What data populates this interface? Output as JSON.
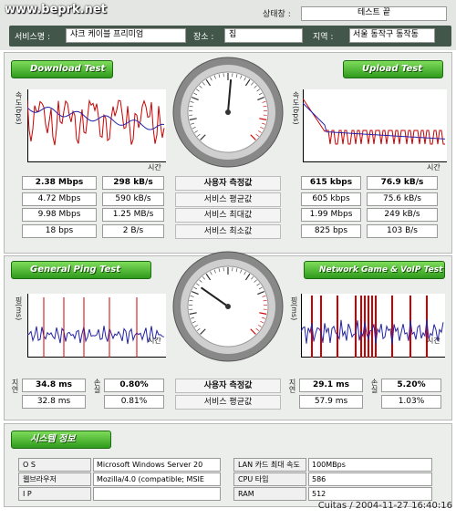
{
  "watermark": "www.beprk.net",
  "header": {
    "status_label": "상태창 :",
    "status": "테스트 끝",
    "service_label": "서비스명 :",
    "service": "샤크 케이블 프리미엄",
    "place_label": "장소 :",
    "place": "집",
    "region_label": "지역 :",
    "region": "서울 동작구 동작동"
  },
  "speed": {
    "download_button": "Download Test",
    "upload_button": "Upload Test",
    "y_label": "속도(bps)",
    "x_label": "시간",
    "row_labels": [
      "사용자 측정값",
      "서비스 평균값",
      "서비스 최대값",
      "서비스 최소값"
    ],
    "download": [
      [
        "2.38 Mbps",
        "298 kB/s"
      ],
      [
        "4.72 Mbps",
        "590 kB/s"
      ],
      [
        "9.98 Mbps",
        "1.25 MB/s"
      ],
      [
        "18 bps",
        "2 B/s"
      ]
    ],
    "upload": [
      [
        "615 kbps",
        "76.9 kB/s"
      ],
      [
        "605 kbps",
        "75.6 kB/s"
      ],
      [
        "1.99 Mbps",
        "249 kB/s"
      ],
      [
        "825 bps",
        "103 B/s"
      ]
    ]
  },
  "ping": {
    "ping_button": "General Ping Test",
    "game_button": "Network Game & VoIP Test",
    "y_label": "핑(ms)",
    "x_label": "시간",
    "delay_label": "지연",
    "loss_label": "손실",
    "row_labels": [
      "사용자 측정값",
      "서비스 평균값"
    ],
    "ping": [
      [
        "34.8 ms",
        "0.80%"
      ],
      [
        "32.8 ms",
        "0.81%"
      ]
    ],
    "game": [
      [
        "29.1 ms",
        "5.20%"
      ],
      [
        "57.9 ms",
        "1.03%"
      ]
    ]
  },
  "system": {
    "button": "시스템 정보",
    "left": [
      [
        "O S",
        "Microsoft Windows Server 20"
      ],
      [
        "웹브라우저",
        "Mozilla/4.0 (compatible; MSIE"
      ],
      [
        "I P"
      ]
    ],
    "right": [
      [
        "LAN 카드 최대 속도",
        "100MBps"
      ],
      [
        "CPU 타입",
        "586"
      ],
      [
        "RAM",
        "512"
      ]
    ]
  },
  "footer": "Cuitas / 2004-11-27 16:40:16"
}
